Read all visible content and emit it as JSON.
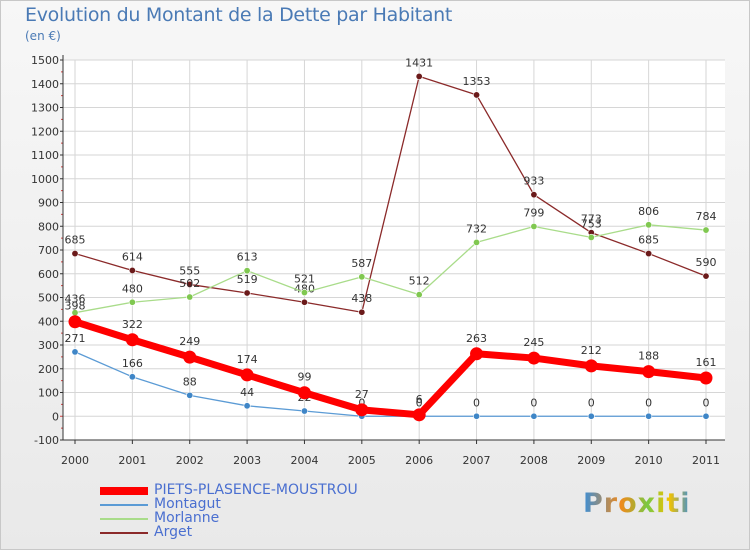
{
  "title": "Evolution du Montant de la Dette par Habitant",
  "subtitle": "(en €)",
  "brand": "Proxiti",
  "colors": {
    "title": "#4a7ab5",
    "grid": "#d6d6d6",
    "axis": "#333333",
    "zero_tick": "#d04040"
  },
  "chart_data": {
    "type": "line",
    "title": "Evolution du Montant de la Dette par Habitant",
    "ylabel": "(en €)",
    "xlabel": "",
    "categories": [
      "2000",
      "2001",
      "2002",
      "2003",
      "2004",
      "2005",
      "2006",
      "2007",
      "2008",
      "2009",
      "2010",
      "2011"
    ],
    "ylim": [
      -100,
      1500
    ],
    "yticks": [
      -100,
      0,
      100,
      200,
      300,
      400,
      500,
      600,
      700,
      800,
      900,
      1000,
      1100,
      1200,
      1300,
      1400,
      1500
    ],
    "grid": true,
    "legend_position": "bottom-left",
    "series": [
      {
        "name": "Arget",
        "color": "#8b2a2a",
        "marker": "#6b1a1a",
        "width": 1.3,
        "label_pos": "above",
        "values": [
          685,
          614,
          555,
          519,
          480,
          438,
          1431,
          1353,
          933,
          773,
          685,
          590
        ]
      },
      {
        "name": "Morlanne",
        "color": "#a9dc8a",
        "marker": "#80c850",
        "width": 1.3,
        "label_pos": "above",
        "values": [
          436,
          480,
          502,
          613,
          521,
          587,
          512,
          732,
          799,
          753,
          806,
          784
        ]
      },
      {
        "name": "Montagut",
        "color": "#5b9bd5",
        "marker": "#3f86c7",
        "width": 1.3,
        "label_pos": "above",
        "values": [
          271,
          166,
          88,
          44,
          22,
          0,
          0,
          0,
          0,
          0,
          0,
          0
        ]
      },
      {
        "name": "PIETS-PLASENCE-MOUSTROU",
        "color": "#ff0000",
        "marker": "#ff0000",
        "width": 7,
        "label_pos": "above",
        "values": [
          398,
          322,
          249,
          174,
          99,
          27,
          6,
          263,
          245,
          212,
          188,
          161
        ]
      }
    ]
  }
}
